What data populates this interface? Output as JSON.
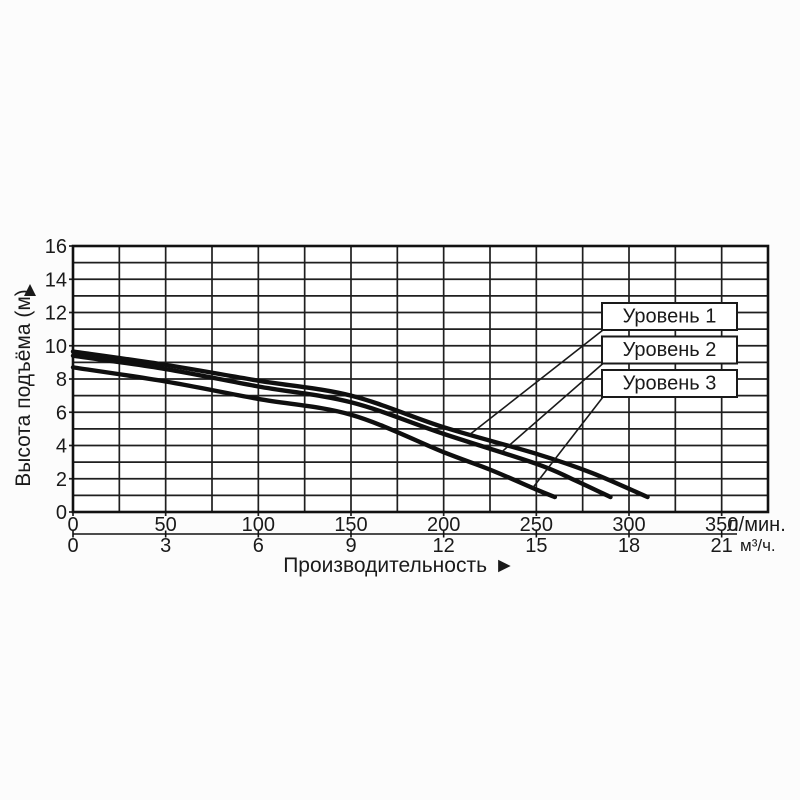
{
  "chart_data": {
    "type": "line",
    "title": "",
    "x_axis": {
      "title": "Производительность",
      "arrow": "►",
      "primary": {
        "unit": "л/мин.",
        "ticks": [
          0,
          50,
          100,
          150,
          200,
          250,
          300,
          350
        ],
        "max": 375
      },
      "secondary": {
        "unit": "м³/ч.",
        "ticks": [
          0,
          3,
          6,
          9,
          12,
          15,
          18,
          21
        ],
        "max": 22.5
      }
    },
    "y_axis": {
      "title": "Высота подъёма (м)",
      "arrow": "▲",
      "ticks": [
        0,
        2,
        4,
        6,
        8,
        10,
        12,
        14,
        16
      ],
      "min": 0,
      "max": 16,
      "grid_step": 1
    },
    "grid": {
      "enabled": true,
      "x_step_lmin": 25,
      "y_step_m": 1
    },
    "legend": {
      "style": "callout-boxes",
      "position": "inside-right"
    },
    "series": [
      {
        "name": "Уровень 1",
        "points": [
          [
            0,
            9.65
          ],
          [
            50,
            8.85
          ],
          [
            100,
            7.9
          ],
          [
            150,
            7.0
          ],
          [
            200,
            5.1
          ],
          [
            250,
            3.5
          ],
          [
            280,
            2.35
          ],
          [
            310,
            0.9
          ]
        ]
      },
      {
        "name": "Уровень 2",
        "points": [
          [
            0,
            9.4
          ],
          [
            50,
            8.6
          ],
          [
            100,
            7.55
          ],
          [
            150,
            6.6
          ],
          [
            200,
            4.7
          ],
          [
            250,
            2.9
          ],
          [
            270,
            1.95
          ],
          [
            290,
            0.9
          ]
        ]
      },
      {
        "name": "Уровень 3",
        "points": [
          [
            0,
            8.7
          ],
          [
            50,
            7.85
          ],
          [
            100,
            6.8
          ],
          [
            150,
            5.85
          ],
          [
            200,
            3.6
          ],
          [
            225,
            2.55
          ],
          [
            250,
            1.35
          ],
          [
            260,
            0.9
          ]
        ]
      }
    ]
  },
  "colors": {
    "background": "#fcfcfc",
    "plot_fill": "#ffffff",
    "grid": "#1f1f1f",
    "border": "#111111",
    "curve": "#0f0f0f",
    "leader": "#1a1a1a",
    "box_fill": "#ffffff",
    "box_border": "#1a1a1a",
    "text": "#1a1a1a"
  }
}
